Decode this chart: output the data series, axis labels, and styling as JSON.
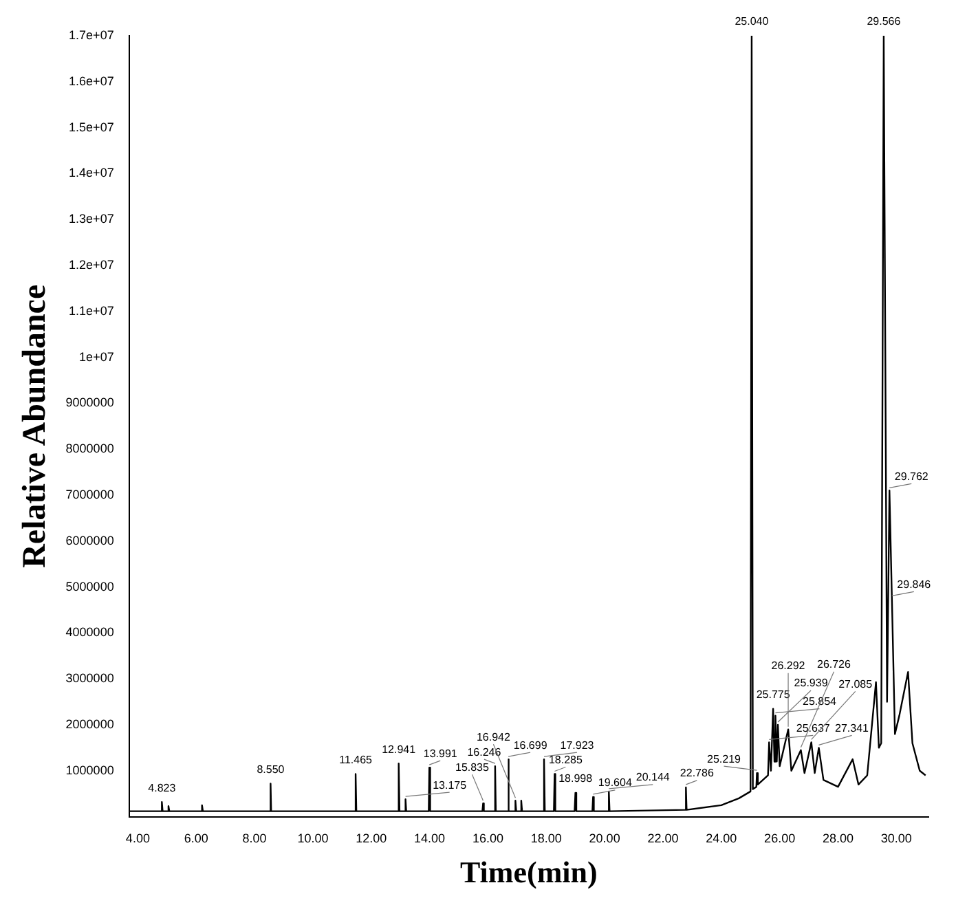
{
  "chart_data": {
    "type": "line",
    "xlabel": "Time(min)",
    "ylabel": "Relative Abundance",
    "xlim": [
      3.7,
      31.1
    ],
    "xticks": [
      {
        "value": 4,
        "label": "4.00"
      },
      {
        "value": 6,
        "label": "6.00"
      },
      {
        "value": 8,
        "label": "8.00"
      },
      {
        "value": 10,
        "label": "10.00"
      },
      {
        "value": 12,
        "label": "12.00"
      },
      {
        "value": 14,
        "label": "14.00"
      },
      {
        "value": 16,
        "label": "16.00"
      },
      {
        "value": 18,
        "label": "18.00"
      },
      {
        "value": 20,
        "label": "20.00"
      },
      {
        "value": 22,
        "label": "22.00"
      },
      {
        "value": 24,
        "label": "24.00"
      },
      {
        "value": 26,
        "label": "26.00"
      },
      {
        "value": 28,
        "label": "28.00"
      },
      {
        "value": 30,
        "label": "30.00"
      }
    ],
    "ylim": [
      0,
      17000000
    ],
    "yticks": [
      1000000,
      2000000,
      3000000,
      4000000,
      5000000,
      6000000,
      7000000,
      8000000,
      9000000,
      {
        "value": 10000000,
        "label": "1e+07"
      },
      {
        "value": 11000000,
        "label": "1.1e+07"
      },
      {
        "value": 12000000,
        "label": "1.2e+07"
      },
      {
        "value": 13000000,
        "label": "1.3e+07"
      },
      {
        "value": 14000000,
        "label": "1.4e+07"
      },
      {
        "value": 15000000,
        "label": "1.5e+07"
      },
      {
        "value": 16000000,
        "label": "1.6e+07"
      },
      {
        "value": 17000000,
        "label": "1.7e+07"
      }
    ],
    "grid": false,
    "legend": false,
    "marker": "none",
    "line_style": "solid",
    "series": [
      {
        "color": "#000000",
        "x": [
          3.7,
          4.8,
          4.823,
          4.85,
          5.03,
          5.05,
          5.08,
          6.18,
          6.2,
          6.23,
          8.53,
          8.55,
          8.57,
          11.44,
          11.465,
          11.49,
          12.92,
          12.941,
          12.97,
          13.15,
          13.175,
          13.2,
          13.97,
          13.991,
          14.02,
          15.81,
          15.835,
          15.86,
          16.22,
          16.246,
          16.27,
          16.68,
          16.699,
          16.72,
          16.92,
          16.942,
          16.97,
          17.12,
          17.142,
          17.17,
          17.9,
          17.923,
          17.95,
          18.26,
          18.285,
          18.31,
          18.97,
          18.998,
          19.03,
          19.58,
          19.604,
          19.63,
          20.12,
          20.144,
          20.17,
          22.76,
          22.786,
          22.81,
          24.0,
          24.6,
          25.0,
          25.04,
          25.08,
          25.2,
          25.219,
          25.25,
          25.6,
          25.637,
          25.7,
          25.775,
          25.82,
          25.854,
          25.9,
          25.939,
          26.0,
          26.292,
          26.4,
          26.726,
          26.85,
          27.085,
          27.2,
          27.341,
          27.5,
          28.0,
          28.5,
          28.7,
          29.0,
          29.3,
          29.4,
          29.48,
          29.566,
          29.68,
          29.762,
          29.846,
          29.95,
          30.1,
          30.4,
          30.55,
          30.8,
          31.0
        ],
        "values": [
          120000,
          120000,
          320000,
          120000,
          120000,
          230000,
          120000,
          120000,
          250000,
          120000,
          120000,
          720000,
          120000,
          120000,
          930000,
          120000,
          120000,
          1160000,
          120000,
          120000,
          380000,
          120000,
          120000,
          1070000,
          120000,
          120000,
          290000,
          120000,
          120000,
          1100000,
          120000,
          120000,
          1250000,
          120000,
          120000,
          350000,
          120000,
          120000,
          350000,
          120000,
          120000,
          1250000,
          120000,
          120000,
          930000,
          120000,
          120000,
          520000,
          120000,
          120000,
          430000,
          120000,
          120000,
          550000,
          120000,
          150000,
          640000,
          150000,
          250000,
          400000,
          550000,
          17000000,
          600000,
          650000,
          950000,
          700000,
          900000,
          1620000,
          1000000,
          2350000,
          1200000,
          2200000,
          1200000,
          2000000,
          1100000,
          1900000,
          1000000,
          1450000,
          950000,
          1620000,
          950000,
          1500000,
          800000,
          650000,
          1250000,
          700000,
          900000,
          2930000,
          1500000,
          1600000,
          17000000,
          2500000,
          7100000,
          4750000,
          1800000,
          2200000,
          3150000,
          1600000,
          1000000,
          900000
        ]
      }
    ],
    "annotations": [
      {
        "text": "4.823",
        "x": 4.823,
        "y": 320000
      },
      {
        "text": "8.550",
        "x": 8.55,
        "y": 720000
      },
      {
        "text": "11.465",
        "x": 11.465,
        "y": 930000
      },
      {
        "text": "12.941",
        "x": 12.941,
        "y": 1160000
      },
      {
        "text": "13.175",
        "x": 13.175,
        "y": 380000
      },
      {
        "text": "13.991",
        "x": 13.991,
        "y": 1070000
      },
      {
        "text": "15.835",
        "x": 15.835,
        "y": 290000
      },
      {
        "text": "16.246",
        "x": 16.246,
        "y": 1100000
      },
      {
        "text": "16.699",
        "x": 16.699,
        "y": 1250000
      },
      {
        "text": "16.942",
        "x": 16.942,
        "y": 350000
      },
      {
        "text": "17.923",
        "x": 17.923,
        "y": 1250000
      },
      {
        "text": "18.285",
        "x": 18.285,
        "y": 930000
      },
      {
        "text": "18.998",
        "x": 18.998,
        "y": 520000
      },
      {
        "text": "19.604",
        "x": 19.604,
        "y": 430000
      },
      {
        "text": "20.144",
        "x": 20.144,
        "y": 550000
      },
      {
        "text": "22.786",
        "x": 22.786,
        "y": 640000
      },
      {
        "text": "25.040",
        "x": 25.04,
        "y": 17000000
      },
      {
        "text": "25.219",
        "x": 25.219,
        "y": 950000
      },
      {
        "text": "25.637",
        "x": 25.637,
        "y": 1620000
      },
      {
        "text": "25.775",
        "x": 25.775,
        "y": 2350000
      },
      {
        "text": "25.854",
        "x": 25.854,
        "y": 2200000
      },
      {
        "text": "25.939",
        "x": 25.939,
        "y": 2000000
      },
      {
        "text": "26.292",
        "x": 26.292,
        "y": 1900000
      },
      {
        "text": "26.726",
        "x": 26.726,
        "y": 1450000
      },
      {
        "text": "27.085",
        "x": 27.085,
        "y": 1620000
      },
      {
        "text": "27.341",
        "x": 27.341,
        "y": 1500000
      },
      {
        "text": "29.566",
        "x": 29.566,
        "y": 17000000
      },
      {
        "text": "29.762",
        "x": 29.762,
        "y": 7100000
      },
      {
        "text": "29.846",
        "x": 29.846,
        "y": 4750000
      }
    ]
  }
}
